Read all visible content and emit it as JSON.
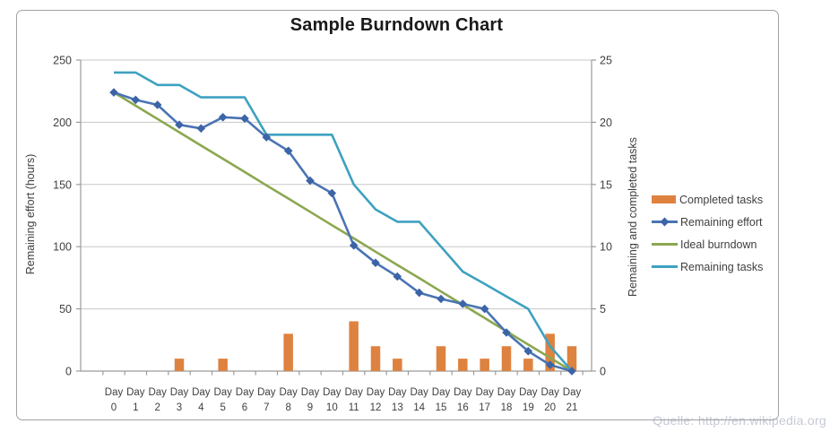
{
  "chart_data": {
    "type": "combo-bar-line",
    "title": "Sample Burndown Chart",
    "x_axis": {
      "label_word": "Day",
      "days": [
        0,
        1,
        2,
        3,
        4,
        5,
        6,
        7,
        8,
        9,
        10,
        11,
        12,
        13,
        14,
        15,
        16,
        17,
        18,
        19,
        20,
        21
      ]
    },
    "left_axis": {
      "label": "Remaining effort (hours)",
      "min": 0,
      "max": 250,
      "ticks": [
        250,
        200,
        150,
        100,
        50,
        0
      ]
    },
    "right_axis": {
      "label": "Remaining and completed tasks",
      "min": 0,
      "max": 25,
      "ticks": [
        25,
        20,
        15,
        10,
        5,
        0
      ]
    },
    "series": [
      {
        "name": "Completed tasks",
        "type": "bar",
        "axis": "right",
        "color": "#DE8240",
        "values": [
          0,
          0,
          0,
          1,
          0,
          1,
          0,
          0,
          3,
          0,
          0,
          4,
          2,
          1,
          0,
          2,
          1,
          1,
          2,
          1,
          3,
          2
        ]
      },
      {
        "name": "Remaining effort",
        "type": "line-diamond",
        "axis": "left",
        "color": "#4A74B4",
        "marker_color": "#3C64A6",
        "values": [
          224,
          218,
          214,
          198,
          195,
          204,
          203,
          188,
          177,
          153,
          143,
          101,
          87,
          76,
          63,
          58,
          54,
          50,
          31,
          16,
          5,
          0
        ]
      },
      {
        "name": "Ideal burndown",
        "type": "line",
        "axis": "left",
        "color": "#8CA750",
        "values": [
          224,
          213.3,
          202.7,
          192,
          181.3,
          170.7,
          160,
          149.3,
          138.7,
          128,
          117.3,
          106.7,
          96,
          85.3,
          74.7,
          64,
          53.3,
          42.7,
          32,
          21.3,
          10.7,
          0
        ]
      },
      {
        "name": "Remaining tasks",
        "type": "line",
        "axis": "right",
        "color": "#3EA1C0",
        "values": [
          24,
          24,
          23,
          23,
          22,
          22,
          22,
          19,
          19,
          19,
          19,
          15,
          13,
          12,
          12,
          10,
          8,
          7,
          6,
          5,
          2,
          0
        ]
      }
    ],
    "legend_position": "right",
    "grid": true
  },
  "watermark": "Quelle: http://en.wikipedia.org",
  "colors": {
    "grid": "#c7c7c7",
    "axis": "#9b9b9b",
    "text": "#3f3f3f",
    "frame": "#a2a2a6",
    "watermark": "#c6c9d6"
  }
}
